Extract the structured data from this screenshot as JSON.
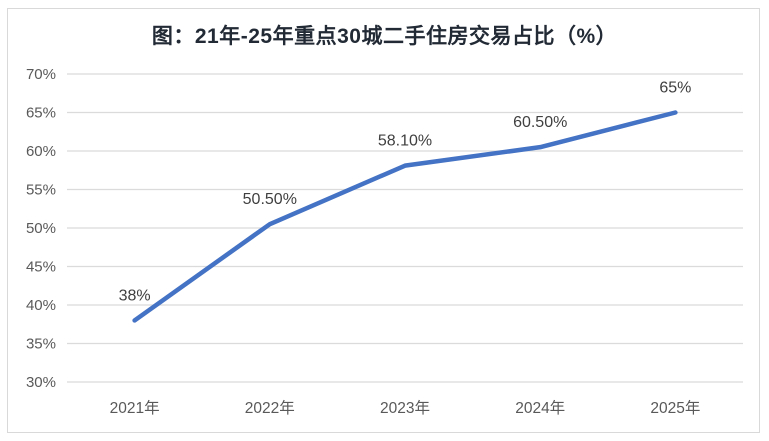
{
  "chart_data": {
    "type": "line",
    "title": "图：21年-25年重点30城二手住房交易占比（%）",
    "categories": [
      "2021年",
      "2022年",
      "2023年",
      "2024年",
      "2025年"
    ],
    "values": [
      38,
      50.5,
      58.1,
      60.5,
      65
    ],
    "data_labels": [
      "38%",
      "50.50%",
      "58.10%",
      "60.50%",
      "65%"
    ],
    "y_tick_labels": [
      "30%",
      "35%",
      "40%",
      "45%",
      "50%",
      "55%",
      "60%",
      "65%",
      "70%"
    ],
    "y_tick_values": [
      30,
      35,
      40,
      45,
      50,
      55,
      60,
      65,
      70
    ],
    "ylim": [
      30,
      70
    ],
    "xlabel": "",
    "ylabel": "",
    "grid": true,
    "legend_position": "none",
    "colors": {
      "line": "#4472C4",
      "gridline": "#DBDBDB",
      "axis_text": "#595959",
      "data_label_text": "#3F3F3F",
      "title_text": "#222A35",
      "frame_border": "#D9D9D9",
      "background": "#FFFFFF"
    }
  }
}
